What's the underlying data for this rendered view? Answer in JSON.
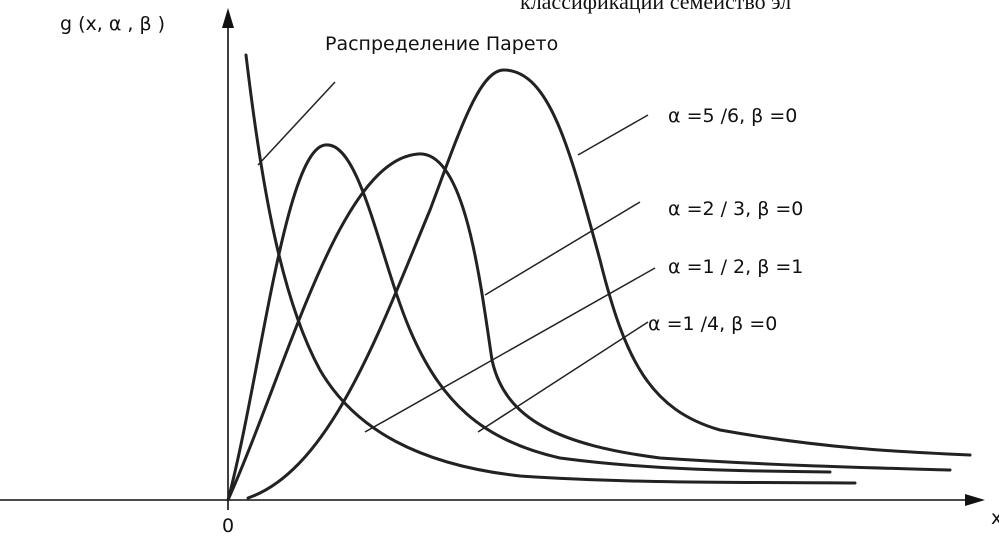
{
  "header": {
    "text": "классификаций     семейство  эл"
  },
  "axes": {
    "y_label": "g (x, α , β )",
    "origin": "0",
    "x_label": "x"
  },
  "labels": {
    "pareto": "Распределение  Парето",
    "curves": [
      "α =5 /6,   β =0",
      "α =2 / 3,   β =0",
      "α =1 / 2,   β =1",
      "α =1 /4,   β =0"
    ]
  }
}
